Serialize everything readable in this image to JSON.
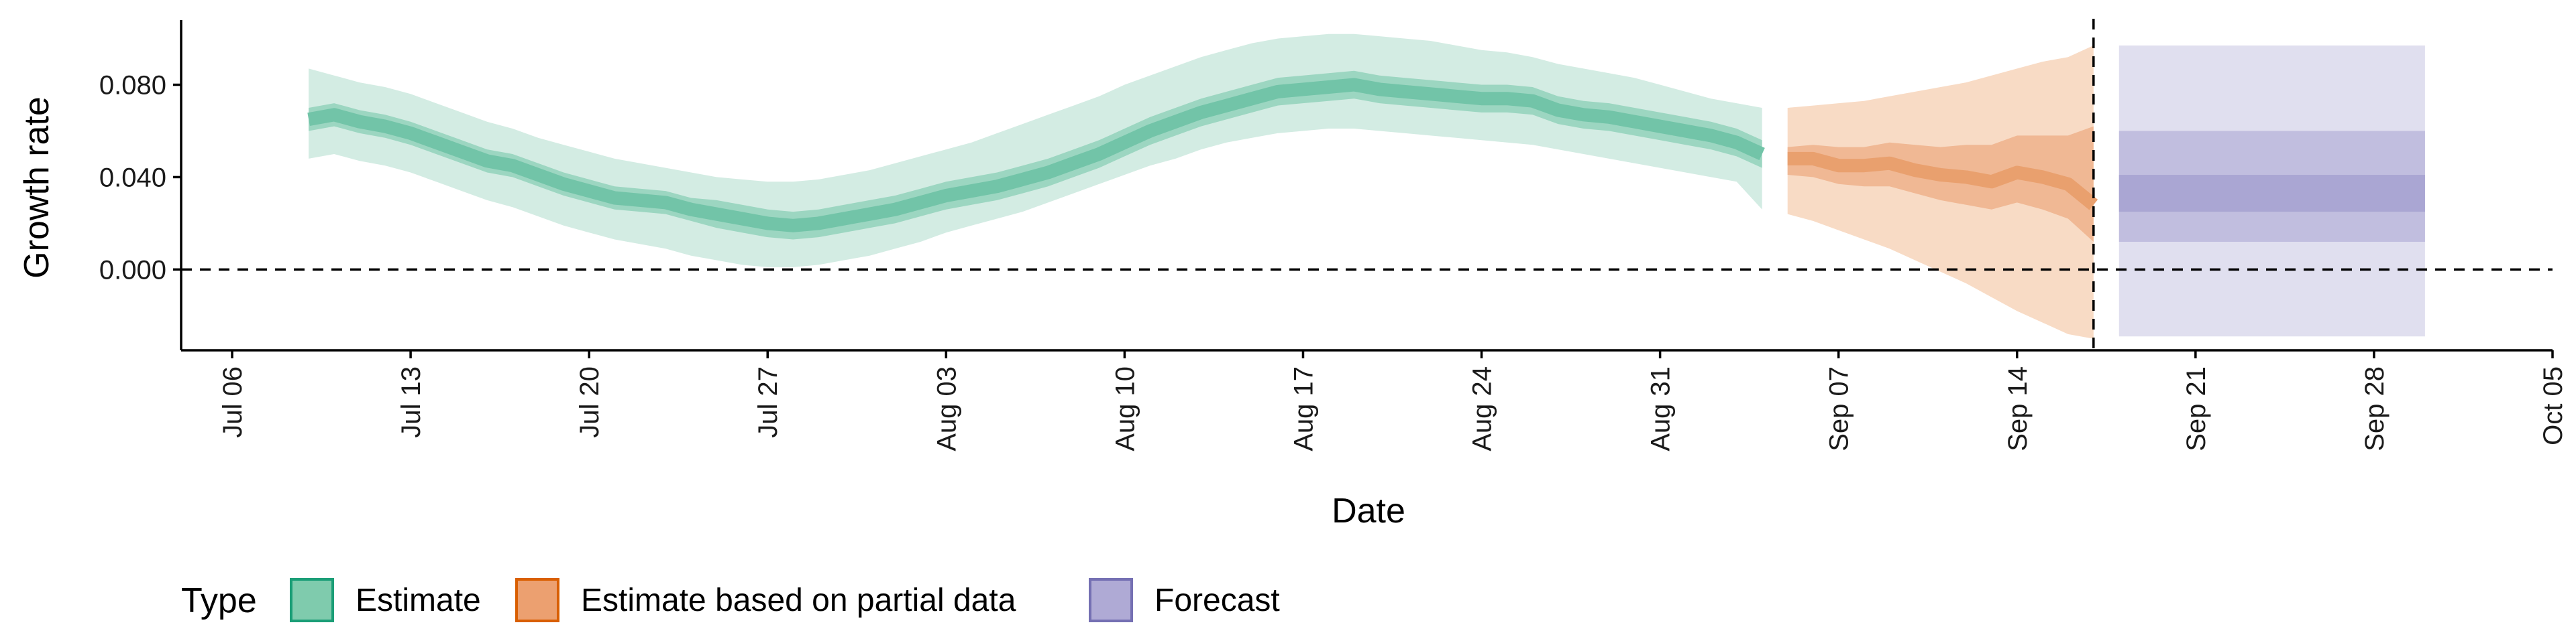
{
  "chart_data": {
    "type": "area",
    "xlabel": "Date",
    "ylabel": "Growth rate",
    "xlim": [
      "2020-07-04",
      "2020-10-05"
    ],
    "ylim": [
      -0.035,
      0.108
    ],
    "x_ticks": [
      "2020-07-06",
      "2020-07-13",
      "2020-07-20",
      "2020-07-27",
      "2020-08-03",
      "2020-08-10",
      "2020-08-17",
      "2020-08-24",
      "2020-08-31",
      "2020-09-07",
      "2020-09-14",
      "2020-09-21",
      "2020-09-28",
      "2020-10-05"
    ],
    "x_tick_labels": [
      "Jul 06",
      "Jul 13",
      "Jul 20",
      "Jul 27",
      "Aug 03",
      "Aug 10",
      "Aug 17",
      "Aug 24",
      "Aug 31",
      "Sep 07",
      "Sep 14",
      "Sep 21",
      "Sep 28",
      "Oct 05"
    ],
    "y_ticks": [
      0.0,
      0.04,
      0.08
    ],
    "y_tick_labels": [
      "0.000",
      "0.040",
      "0.080"
    ],
    "reference_lines": {
      "horizontal_y": 0.0,
      "vertical_date": "2020-09-17"
    },
    "legend": {
      "title": "Type",
      "position": "bottom-left",
      "entries": [
        "Estimate",
        "Estimate based on partial data",
        "Forecast"
      ]
    },
    "colors": {
      "Estimate": {
        "outer": "#d3ece3",
        "mid": "#9cd6c1",
        "median": "#72c4a8",
        "key": "#7fcbad",
        "key_border": "#1b9e77"
      },
      "Estimate based on partial data": {
        "outer": "#f8dbc5",
        "mid": "#f0b894",
        "median": "#e9a06e",
        "key": "#eca070",
        "key_border": "#d95f02"
      },
      "Forecast": {
        "outer": "#e0dfef",
        "mid": "#c1bedf",
        "median": "#aaa6d3",
        "key": "#afaad5",
        "key_border": "#7570b3"
      }
    },
    "series": [
      {
        "name": "Estimate",
        "x": [
          "2020-07-09",
          "2020-07-10",
          "2020-07-11",
          "2020-07-12",
          "2020-07-13",
          "2020-07-14",
          "2020-07-15",
          "2020-07-16",
          "2020-07-17",
          "2020-07-18",
          "2020-07-19",
          "2020-07-20",
          "2020-07-21",
          "2020-07-22",
          "2020-07-23",
          "2020-07-24",
          "2020-07-25",
          "2020-07-26",
          "2020-07-27",
          "2020-07-28",
          "2020-07-29",
          "2020-07-30",
          "2020-07-31",
          "2020-08-01",
          "2020-08-02",
          "2020-08-03",
          "2020-08-04",
          "2020-08-05",
          "2020-08-06",
          "2020-08-07",
          "2020-08-08",
          "2020-08-09",
          "2020-08-10",
          "2020-08-11",
          "2020-08-12",
          "2020-08-13",
          "2020-08-14",
          "2020-08-15",
          "2020-08-16",
          "2020-08-17",
          "2020-08-18",
          "2020-08-19",
          "2020-08-20",
          "2020-08-21",
          "2020-08-22",
          "2020-08-23",
          "2020-08-24",
          "2020-08-25",
          "2020-08-26",
          "2020-08-27",
          "2020-08-28",
          "2020-08-29",
          "2020-08-30",
          "2020-08-31",
          "2020-09-01",
          "2020-09-02",
          "2020-09-03",
          "2020-09-04"
        ],
        "median": [
          0.065,
          0.067,
          0.064,
          0.062,
          0.059,
          0.055,
          0.051,
          0.047,
          0.045,
          0.041,
          0.037,
          0.034,
          0.031,
          0.03,
          0.029,
          0.026,
          0.024,
          0.022,
          0.02,
          0.019,
          0.02,
          0.022,
          0.024,
          0.026,
          0.029,
          0.032,
          0.034,
          0.036,
          0.039,
          0.042,
          0.046,
          0.05,
          0.055,
          0.06,
          0.064,
          0.068,
          0.071,
          0.074,
          0.077,
          0.078,
          0.079,
          0.08,
          0.078,
          0.077,
          0.076,
          0.075,
          0.074,
          0.074,
          0.073,
          0.069,
          0.067,
          0.066,
          0.064,
          0.062,
          0.06,
          0.058,
          0.055,
          0.05
        ],
        "lower50": [
          0.06,
          0.062,
          0.059,
          0.057,
          0.054,
          0.05,
          0.046,
          0.042,
          0.04,
          0.036,
          0.032,
          0.029,
          0.026,
          0.025,
          0.024,
          0.021,
          0.018,
          0.016,
          0.014,
          0.013,
          0.014,
          0.016,
          0.018,
          0.02,
          0.023,
          0.026,
          0.028,
          0.03,
          0.033,
          0.036,
          0.04,
          0.044,
          0.049,
          0.054,
          0.058,
          0.062,
          0.065,
          0.068,
          0.071,
          0.072,
          0.073,
          0.074,
          0.072,
          0.071,
          0.07,
          0.069,
          0.068,
          0.068,
          0.067,
          0.063,
          0.061,
          0.06,
          0.058,
          0.056,
          0.054,
          0.052,
          0.049,
          0.044
        ],
        "upper50": [
          0.07,
          0.072,
          0.069,
          0.067,
          0.064,
          0.06,
          0.056,
          0.052,
          0.05,
          0.046,
          0.042,
          0.039,
          0.036,
          0.035,
          0.034,
          0.031,
          0.03,
          0.028,
          0.026,
          0.025,
          0.026,
          0.028,
          0.03,
          0.032,
          0.035,
          0.038,
          0.04,
          0.042,
          0.045,
          0.048,
          0.052,
          0.056,
          0.061,
          0.066,
          0.07,
          0.074,
          0.077,
          0.08,
          0.083,
          0.084,
          0.085,
          0.086,
          0.084,
          0.083,
          0.082,
          0.081,
          0.08,
          0.08,
          0.079,
          0.075,
          0.073,
          0.072,
          0.07,
          0.068,
          0.066,
          0.064,
          0.061,
          0.056
        ],
        "lower90": [
          0.048,
          0.05,
          0.047,
          0.045,
          0.042,
          0.038,
          0.034,
          0.03,
          0.027,
          0.023,
          0.019,
          0.016,
          0.013,
          0.011,
          0.009,
          0.006,
          0.004,
          0.002,
          0.001,
          0.001,
          0.002,
          0.004,
          0.006,
          0.009,
          0.012,
          0.016,
          0.019,
          0.022,
          0.025,
          0.029,
          0.033,
          0.037,
          0.041,
          0.045,
          0.048,
          0.052,
          0.055,
          0.057,
          0.059,
          0.06,
          0.061,
          0.061,
          0.06,
          0.059,
          0.058,
          0.057,
          0.056,
          0.055,
          0.054,
          0.052,
          0.05,
          0.048,
          0.046,
          0.044,
          0.042,
          0.04,
          0.038,
          0.026
        ],
        "upper90": [
          0.087,
          0.084,
          0.081,
          0.079,
          0.076,
          0.072,
          0.068,
          0.064,
          0.061,
          0.057,
          0.054,
          0.051,
          0.048,
          0.046,
          0.044,
          0.042,
          0.04,
          0.039,
          0.038,
          0.038,
          0.039,
          0.041,
          0.043,
          0.046,
          0.049,
          0.052,
          0.055,
          0.059,
          0.063,
          0.067,
          0.071,
          0.075,
          0.08,
          0.084,
          0.088,
          0.092,
          0.095,
          0.098,
          0.1,
          0.101,
          0.102,
          0.102,
          0.101,
          0.1,
          0.099,
          0.097,
          0.095,
          0.094,
          0.092,
          0.089,
          0.087,
          0.085,
          0.083,
          0.08,
          0.077,
          0.074,
          0.072,
          0.07
        ]
      },
      {
        "name": "Estimate based on partial data",
        "x": [
          "2020-09-05",
          "2020-09-06",
          "2020-09-07",
          "2020-09-08",
          "2020-09-09",
          "2020-09-10",
          "2020-09-11",
          "2020-09-12",
          "2020-09-13",
          "2020-09-14",
          "2020-09-15",
          "2020-09-16",
          "2020-09-17"
        ],
        "median": [
          0.048,
          0.048,
          0.045,
          0.045,
          0.046,
          0.043,
          0.041,
          0.04,
          0.038,
          0.042,
          0.04,
          0.037,
          0.028
        ],
        "lower50": [
          0.041,
          0.04,
          0.037,
          0.036,
          0.036,
          0.033,
          0.03,
          0.028,
          0.026,
          0.029,
          0.026,
          0.022,
          0.012
        ],
        "upper50": [
          0.053,
          0.054,
          0.053,
          0.053,
          0.055,
          0.054,
          0.053,
          0.054,
          0.054,
          0.058,
          0.058,
          0.058,
          0.062
        ],
        "lower90": [
          0.024,
          0.021,
          0.017,
          0.013,
          0.009,
          0.004,
          -0.001,
          -0.006,
          -0.012,
          -0.018,
          -0.023,
          -0.028,
          -0.03
        ],
        "upper90": [
          0.07,
          0.071,
          0.072,
          0.073,
          0.075,
          0.077,
          0.079,
          0.081,
          0.084,
          0.087,
          0.09,
          0.092,
          0.097
        ]
      },
      {
        "name": "Forecast",
        "x": [
          "2020-09-18",
          "2020-09-30"
        ],
        "median": [
          0.033,
          0.033
        ],
        "lower50": [
          0.025,
          0.025
        ],
        "upper50": [
          0.041,
          0.041
        ],
        "lower90": [
          0.012,
          0.012
        ],
        "upper90": [
          0.06,
          0.06
        ],
        "lower_outer": [
          -0.029,
          -0.029
        ],
        "upper_outer": [
          0.097,
          0.097
        ]
      }
    ]
  }
}
